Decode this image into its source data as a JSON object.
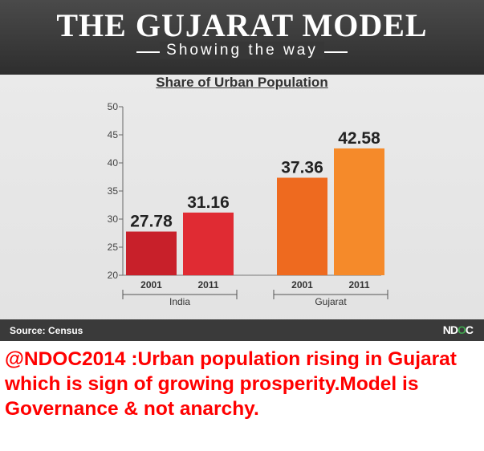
{
  "header": {
    "title": "THE GUJARAT MODEL",
    "tagline": "Showing the way"
  },
  "chart_data": {
    "type": "bar",
    "title": "Share of Urban Population",
    "xlabel": "",
    "ylabel": "",
    "ylim": [
      20,
      50
    ],
    "yticks": [
      20,
      25,
      30,
      35,
      40,
      45,
      50
    ],
    "groups": [
      {
        "name": "India",
        "categories": [
          "2001",
          "2011"
        ],
        "values": [
          27.78,
          31.16
        ],
        "value_labels": [
          "27.78",
          "31.16"
        ],
        "colors": [
          "#c8202a",
          "#e02b33"
        ]
      },
      {
        "name": "Gujarat",
        "categories": [
          "2001",
          "2011"
        ],
        "values": [
          37.36,
          42.58
        ],
        "value_labels": [
          "37.36",
          "42.58"
        ],
        "colors": [
          "#ee6a1f",
          "#f58a2a"
        ]
      }
    ],
    "grid": false,
    "legend": "none"
  },
  "footer": {
    "source": "Source: Census",
    "logo_part1": "ND",
    "logo_part2": "O",
    "logo_part3": "C"
  },
  "caption": "@NDOC2014 :Urban population rising in Gujarat which is sign of growing prosperity.Model is Governance & not anarchy."
}
